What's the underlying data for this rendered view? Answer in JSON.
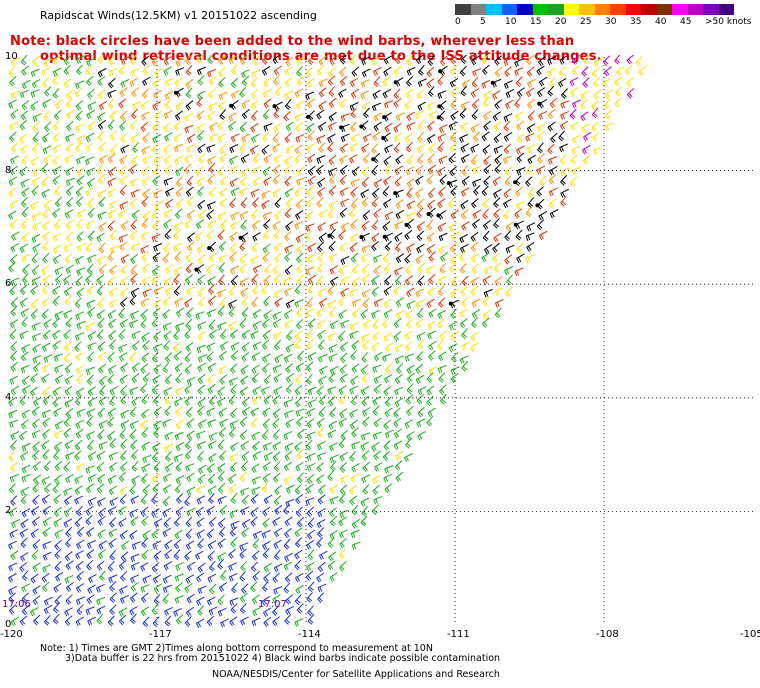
{
  "title": "Rapidscat Winds(12.5KM) v1 20151022 ascending",
  "note": {
    "line1": "Note: black circles have been added to the wind barbs, wherever less than",
    "line2": "optimal wind retrieval conditions are met due to the ISS attitude changes."
  },
  "legend": {
    "colors": [
      "#404040",
      "#808080",
      "#00bfff",
      "#1060ff",
      "#0000c0",
      "#00c000",
      "#20a020",
      "#ffff00",
      "#ffc000",
      "#ff8000",
      "#ff4000",
      "#ff0000",
      "#c00000",
      "#803000",
      "#ff00ff",
      "#c000c0",
      "#8000c0",
      "#400080"
    ],
    "labels": [
      "0",
      "5",
      "10",
      "15",
      "20",
      "25",
      "30",
      "35",
      "40",
      "45",
      ">50 knots"
    ]
  },
  "axes": {
    "lon_labels": [
      "-120",
      "-117",
      "-114",
      "-111",
      "-108",
      "-105"
    ],
    "lat_labels": [
      "10",
      "8",
      "6",
      "4",
      "2",
      "0"
    ]
  },
  "time_labels": [
    "17:06",
    "17:07"
  ],
  "footer": {
    "line1": "Note: 1) Times are GMT 2)Times along bottom correspond to measurement at 10N",
    "line2": "3)Data buffer is 22 hrs from 20151022 4) Black wind barbs indicate possible contamination",
    "line3": "NOAA/NESDIS/Center for Satellite Applications and Research"
  },
  "map_data": {
    "lon_range": [
      -120,
      -105
    ],
    "lat_range": [
      0,
      10
    ],
    "swath_polygon": [
      [
        -120,
        10
      ],
      [
        -107,
        10
      ],
      [
        -113.9,
        0
      ],
      [
        -120,
        0
      ]
    ],
    "region_colors": {
      "south_blue": "#1a30d8",
      "green": "#18b018",
      "yellow": "#ffe000",
      "orange": "#ff9000",
      "red": "#e03000",
      "black": "#000000",
      "magenta": "#c000c0"
    }
  }
}
